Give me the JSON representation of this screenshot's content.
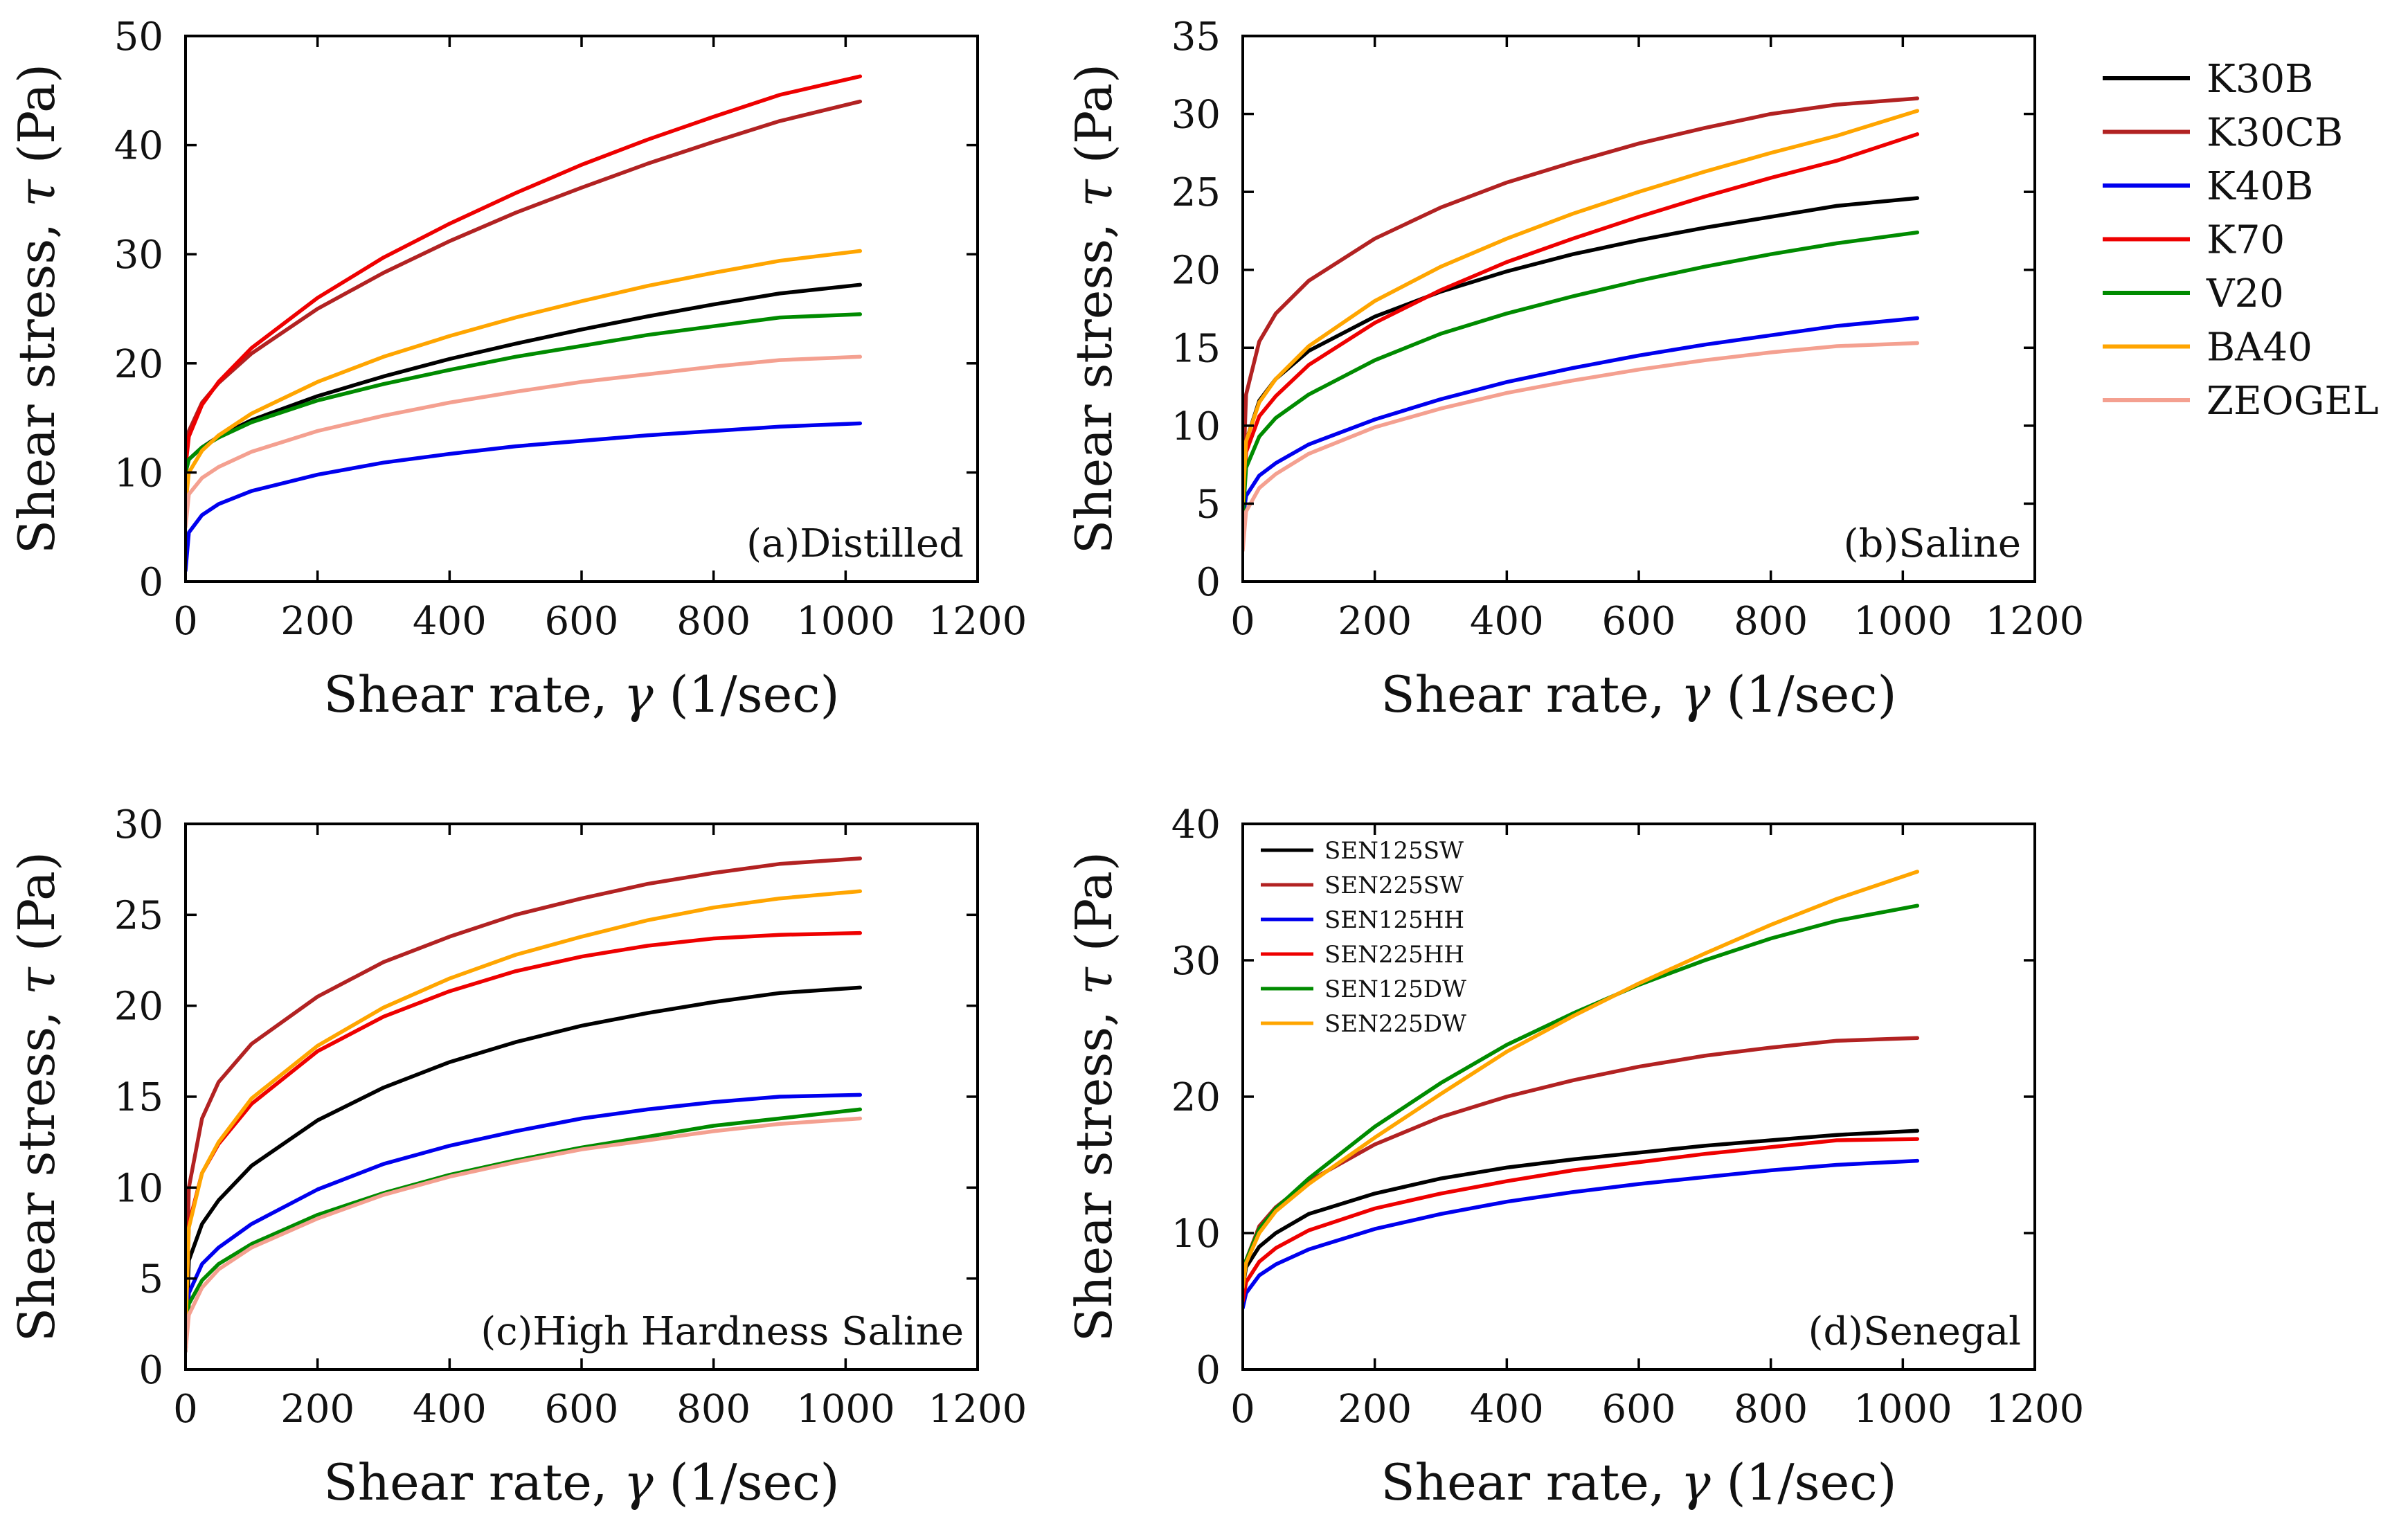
{
  "chart_data": [
    {
      "type": "line",
      "label": "(a)Distilled",
      "xlabel_prefix": "Shear rate, ",
      "xlabel_symbol": "γ",
      "xlabel_suffix": " (1/sec)",
      "ylabel_prefix": "Shear stress, ",
      "ylabel_symbol": "τ",
      "ylabel_suffix": " (Pa)",
      "xlim": [
        0,
        1200
      ],
      "ylim": [
        0,
        50
      ],
      "xticks": [
        0,
        200,
        400,
        600,
        800,
        1000,
        1200
      ],
      "yticks": [
        0,
        10,
        20,
        30,
        40,
        50
      ],
      "x": [
        0,
        5,
        25,
        50,
        100,
        200,
        300,
        400,
        500,
        600,
        700,
        800,
        900,
        1022
      ],
      "series": [
        {
          "name": "K30B",
          "values": [
            10.0,
            11.2,
            12.3,
            13.3,
            14.8,
            17.0,
            18.8,
            20.4,
            21.8,
            23.1,
            24.3,
            25.4,
            26.4,
            27.2
          ]
        },
        {
          "name": "K30CB",
          "values": [
            11.0,
            13.8,
            16.4,
            18.2,
            20.9,
            25.0,
            28.3,
            31.2,
            33.8,
            36.1,
            38.3,
            40.3,
            42.2,
            44.0
          ]
        },
        {
          "name": "K40B",
          "values": [
            1.0,
            4.5,
            6.1,
            7.1,
            8.3,
            9.8,
            10.9,
            11.7,
            12.4,
            12.9,
            13.4,
            13.8,
            14.2,
            14.5
          ]
        },
        {
          "name": "K70",
          "values": [
            10.5,
            13.3,
            16.2,
            18.3,
            21.4,
            26.0,
            29.7,
            32.8,
            35.6,
            38.2,
            40.5,
            42.6,
            44.6,
            46.3
          ]
        },
        {
          "name": "V20",
          "values": [
            10.0,
            11.2,
            12.3,
            13.2,
            14.6,
            16.6,
            18.1,
            19.4,
            20.6,
            21.6,
            22.6,
            23.4,
            24.2,
            24.5
          ]
        },
        {
          "name": "BA40",
          "values": [
            7.0,
            10.0,
            12.0,
            13.4,
            15.4,
            18.3,
            20.6,
            22.5,
            24.2,
            25.7,
            27.1,
            28.3,
            29.4,
            30.3
          ]
        },
        {
          "name": "ZEOGEL",
          "values": [
            5.0,
            8.0,
            9.5,
            10.5,
            11.9,
            13.8,
            15.2,
            16.4,
            17.4,
            18.3,
            19.0,
            19.7,
            20.3,
            20.6
          ]
        }
      ]
    },
    {
      "type": "line",
      "label": "(b)Saline",
      "xlabel_prefix": "Shear rate, ",
      "xlabel_symbol": "γ",
      "xlabel_suffix": " (1/sec)",
      "ylabel_prefix": "Shear stress, ",
      "ylabel_symbol": "τ",
      "ylabel_suffix": " (Pa)",
      "xlim": [
        0,
        1200
      ],
      "ylim": [
        0,
        35
      ],
      "xticks": [
        0,
        200,
        400,
        600,
        800,
        1000,
        1200
      ],
      "yticks": [
        0,
        5,
        10,
        15,
        20,
        25,
        30,
        35
      ],
      "x": [
        0,
        5,
        25,
        50,
        100,
        200,
        300,
        400,
        500,
        600,
        700,
        800,
        900,
        1022
      ],
      "series": [
        {
          "name": "K30B",
          "values": [
            5.0,
            9.0,
            11.6,
            13.0,
            14.8,
            17.0,
            18.6,
            19.9,
            21.0,
            21.9,
            22.7,
            23.4,
            24.1,
            24.6
          ]
        },
        {
          "name": "K30CB",
          "values": [
            6.0,
            12.0,
            15.4,
            17.2,
            19.3,
            22.0,
            24.0,
            25.6,
            26.9,
            28.1,
            29.1,
            30.0,
            30.6,
            31.0
          ]
        },
        {
          "name": "K40B",
          "values": [
            4.0,
            5.5,
            6.8,
            7.6,
            8.8,
            10.4,
            11.7,
            12.8,
            13.7,
            14.5,
            15.2,
            15.8,
            16.4,
            16.9
          ]
        },
        {
          "name": "K70",
          "values": [
            5.0,
            8.3,
            10.6,
            11.9,
            13.9,
            16.6,
            18.7,
            20.5,
            22.0,
            23.4,
            24.7,
            25.9,
            27.0,
            28.7
          ]
        },
        {
          "name": "V20",
          "values": [
            4.0,
            7.3,
            9.3,
            10.5,
            12.0,
            14.2,
            15.9,
            17.2,
            18.3,
            19.3,
            20.2,
            21.0,
            21.7,
            22.4
          ]
        },
        {
          "name": "BA40",
          "values": [
            5.0,
            9.0,
            11.5,
            13.0,
            15.1,
            18.0,
            20.2,
            22.0,
            23.6,
            25.0,
            26.3,
            27.5,
            28.6,
            30.2
          ]
        },
        {
          "name": "ZEOGEL",
          "values": [
            2.0,
            4.5,
            6.0,
            6.9,
            8.2,
            9.9,
            11.1,
            12.1,
            12.9,
            13.6,
            14.2,
            14.7,
            15.1,
            15.3
          ]
        }
      ]
    },
    {
      "type": "line",
      "label": "(c)High Hardness Saline",
      "xlabel_prefix": "Shear rate, ",
      "xlabel_symbol": "γ",
      "xlabel_suffix": " (1/sec)",
      "ylabel_prefix": "Shear stress, ",
      "ylabel_symbol": "τ",
      "ylabel_suffix": " (Pa)",
      "xlim": [
        0,
        1200
      ],
      "ylim": [
        0,
        30
      ],
      "xticks": [
        0,
        200,
        400,
        600,
        800,
        1000,
        1200
      ],
      "yticks": [
        0,
        5,
        10,
        15,
        20,
        25,
        30
      ],
      "x": [
        0,
        5,
        25,
        50,
        100,
        200,
        300,
        400,
        500,
        600,
        700,
        800,
        900,
        1022
      ],
      "series": [
        {
          "name": "K30B",
          "values": [
            1.0,
            6.0,
            8.0,
            9.3,
            11.2,
            13.7,
            15.5,
            16.9,
            18.0,
            18.9,
            19.6,
            20.2,
            20.7,
            21.0
          ]
        },
        {
          "name": "K30CB",
          "values": [
            2.0,
            10.0,
            13.8,
            15.8,
            17.9,
            20.5,
            22.4,
            23.8,
            25.0,
            25.9,
            26.7,
            27.3,
            27.8,
            28.1
          ]
        },
        {
          "name": "K40B",
          "values": [
            1.0,
            4.2,
            5.8,
            6.7,
            8.0,
            9.9,
            11.3,
            12.3,
            13.1,
            13.8,
            14.3,
            14.7,
            15.0,
            15.1
          ]
        },
        {
          "name": "K70",
          "values": [
            2.0,
            8.0,
            10.8,
            12.4,
            14.6,
            17.5,
            19.4,
            20.8,
            21.9,
            22.7,
            23.3,
            23.7,
            23.9,
            24.0
          ]
        },
        {
          "name": "V20",
          "values": [
            1.0,
            3.6,
            4.9,
            5.8,
            6.9,
            8.5,
            9.7,
            10.7,
            11.5,
            12.2,
            12.8,
            13.4,
            13.8,
            14.3
          ]
        },
        {
          "name": "BA40",
          "values": [
            2.0,
            7.8,
            10.8,
            12.5,
            14.9,
            17.8,
            19.9,
            21.5,
            22.8,
            23.8,
            24.7,
            25.4,
            25.9,
            26.3
          ]
        },
        {
          "name": "ZEOGEL",
          "values": [
            1.0,
            3.0,
            4.5,
            5.5,
            6.7,
            8.3,
            9.6,
            10.6,
            11.4,
            12.1,
            12.6,
            13.1,
            13.5,
            13.8
          ]
        }
      ]
    },
    {
      "type": "line",
      "label": "(d)Senegal",
      "xlabel_prefix": "Shear rate, ",
      "xlabel_symbol": "γ",
      "xlabel_suffix": " (1/sec)",
      "ylabel_prefix": "Shear stress, ",
      "ylabel_symbol": "τ",
      "ylabel_suffix": " (Pa)",
      "xlim": [
        0,
        1200
      ],
      "ylim": [
        0,
        40
      ],
      "xticks": [
        0,
        200,
        400,
        600,
        800,
        1000,
        1200
      ],
      "yticks": [
        0,
        10,
        20,
        30,
        40
      ],
      "x": [
        0,
        5,
        25,
        50,
        100,
        200,
        300,
        400,
        500,
        600,
        700,
        800,
        900,
        1022
      ],
      "series": [
        {
          "name": "SEN125SW",
          "values": [
            6.0,
            7.5,
            9.0,
            10.0,
            11.4,
            12.9,
            14.0,
            14.8,
            15.4,
            15.9,
            16.4,
            16.8,
            17.2,
            17.5
          ]
        },
        {
          "name": "SEN225SW",
          "values": [
            6.0,
            8.0,
            10.5,
            11.9,
            13.8,
            16.5,
            18.5,
            20.0,
            21.2,
            22.2,
            23.0,
            23.6,
            24.1,
            24.3
          ]
        },
        {
          "name": "SEN125HH",
          "values": [
            4.5,
            5.6,
            6.9,
            7.7,
            8.8,
            10.3,
            11.4,
            12.3,
            13.0,
            13.6,
            14.1,
            14.6,
            15.0,
            15.3
          ]
        },
        {
          "name": "SEN225HH",
          "values": [
            5.0,
            6.4,
            7.9,
            8.9,
            10.2,
            11.8,
            12.9,
            13.8,
            14.6,
            15.2,
            15.8,
            16.3,
            16.8,
            16.9
          ]
        },
        {
          "name": "SEN125DW",
          "values": [
            6.0,
            8.0,
            10.3,
            11.8,
            14.0,
            17.8,
            21.0,
            23.8,
            26.1,
            28.2,
            30.0,
            31.6,
            32.9,
            34.0
          ]
        },
        {
          "name": "SEN225DW",
          "values": [
            6.0,
            7.8,
            10.0,
            11.6,
            13.6,
            17.0,
            20.2,
            23.3,
            25.9,
            28.3,
            30.5,
            32.6,
            34.5,
            36.5
          ]
        }
      ]
    }
  ],
  "legend_main": {
    "entries": [
      {
        "name": "K30B",
        "color": "#000000"
      },
      {
        "name": "K30CB",
        "color": "#b22222"
      },
      {
        "name": "K40B",
        "color": "#0000ee"
      },
      {
        "name": "K70",
        "color": "#ee0000"
      },
      {
        "name": "V20",
        "color": "#008b00"
      },
      {
        "name": "BA40",
        "color": "#ffa500"
      },
      {
        "name": "ZEOGEL",
        "color": "#f4a090"
      }
    ]
  },
  "legend_senegal": {
    "entries": [
      {
        "name": "SEN125SW",
        "color": "#000000"
      },
      {
        "name": "SEN225SW",
        "color": "#b22222"
      },
      {
        "name": "SEN125HH",
        "color": "#0000ee"
      },
      {
        "name": "SEN225HH",
        "color": "#ee0000"
      },
      {
        "name": "SEN125DW",
        "color": "#008b00"
      },
      {
        "name": "SEN225DW",
        "color": "#ffa500"
      }
    ]
  }
}
